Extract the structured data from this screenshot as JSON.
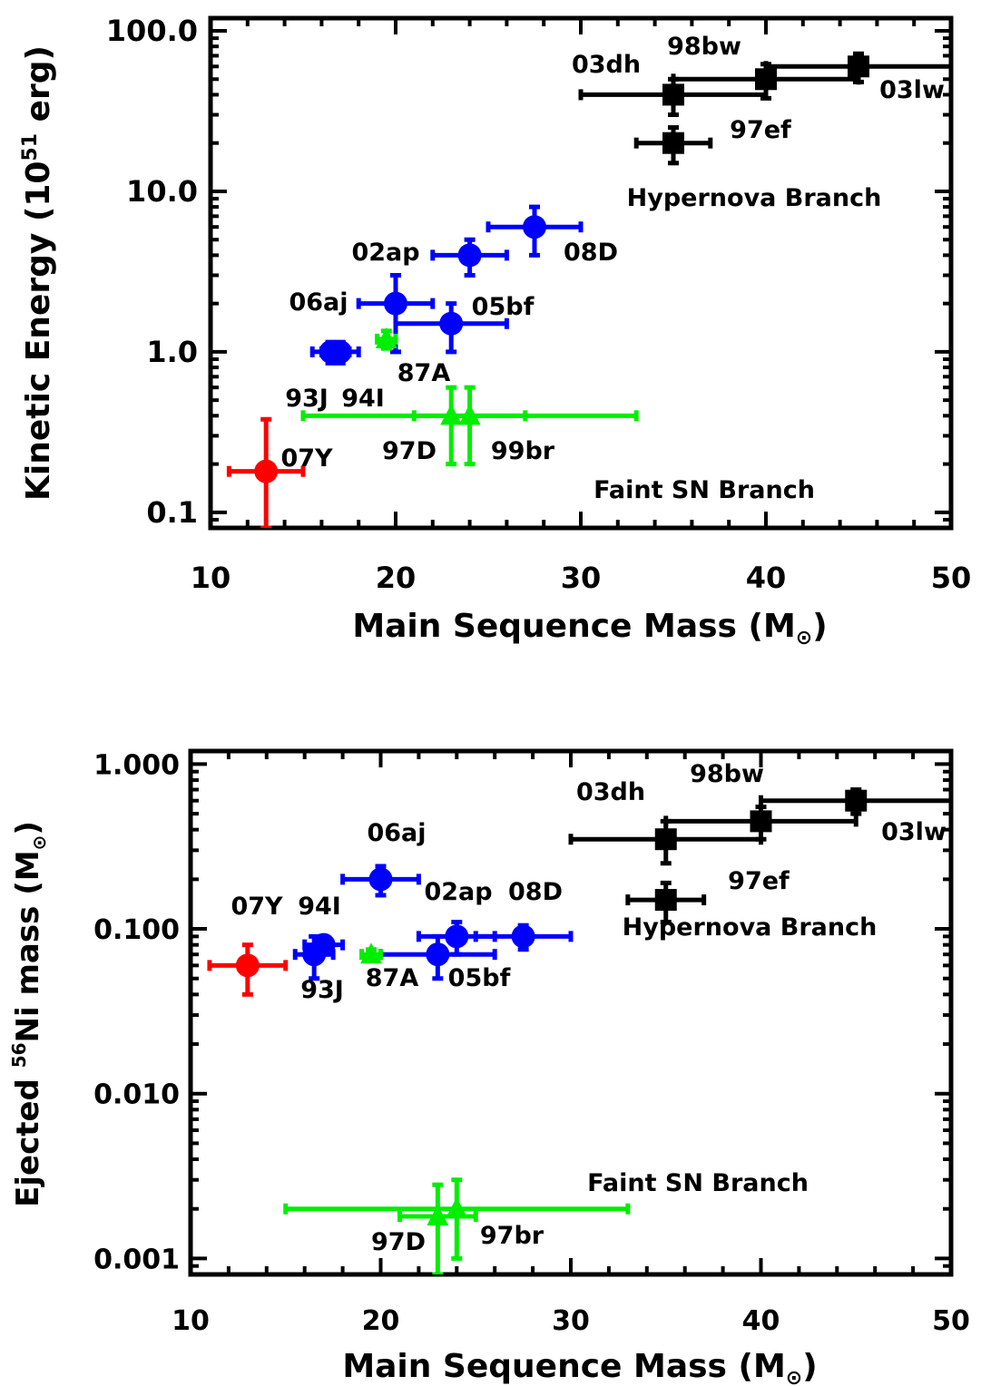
{
  "chart_data": [
    {
      "type": "scatter",
      "title": "",
      "xlabel_main": "Main Sequence Mass (M",
      "xlabel_sub": "⊙",
      "xlabel_close": ")",
      "ylabel_main": "Kinetic Energy (10",
      "ylabel_sup": "51",
      "ylabel_close": " erg)",
      "xlim": [
        10,
        50
      ],
      "ylim": [
        0.08,
        120
      ],
      "yscale": "log",
      "xticks": [
        "10",
        "20",
        "30",
        "40",
        "50"
      ],
      "xtick_values": [
        10,
        20,
        30,
        40,
        50
      ],
      "yticks": [
        "0.1",
        "1.0",
        "10.0",
        "100.0"
      ],
      "ytick_values": [
        0.1,
        1,
        10,
        100
      ],
      "annotations": [
        "Hypernova Branch",
        "Faint SN Branch"
      ],
      "colors": {
        "hypernova": "#000000",
        "normal": "#0000ff",
        "faint": "#00ee00",
        "sn2007Y": "#ff0000"
      },
      "points": [
        {
          "label": "03dh",
          "x": 35,
          "y": 40,
          "xerr": [
            5,
            5
          ],
          "yerr": [
            10,
            10
          ],
          "marker": "square",
          "color": "#000000"
        },
        {
          "label": "98bw",
          "x": 40,
          "y": 50,
          "xerr": [
            5,
            5
          ],
          "yerr": [
            12,
            12
          ],
          "marker": "square",
          "color": "#000000"
        },
        {
          "label": "03lw",
          "x": 45,
          "y": 60,
          "xerr": [
            5,
            5
          ],
          "yerr": [
            12,
            12
          ],
          "marker": "square",
          "color": "#000000"
        },
        {
          "label": "97ef",
          "x": 35,
          "y": 20,
          "xerr": [
            2,
            2
          ],
          "yerr": [
            5,
            5
          ],
          "marker": "square",
          "color": "#000000"
        },
        {
          "label": "08D",
          "x": 27.5,
          "y": 6,
          "xerr": [
            2.5,
            2.5
          ],
          "yerr": [
            2,
            2
          ],
          "marker": "circle",
          "color": "#0000ff"
        },
        {
          "label": "02ap",
          "x": 24,
          "y": 4,
          "xerr": [
            2,
            2
          ],
          "yerr": [
            1,
            1
          ],
          "marker": "circle",
          "color": "#0000ff"
        },
        {
          "label": "06aj",
          "x": 20,
          "y": 2,
          "xerr": [
            2,
            2
          ],
          "yerr": [
            1,
            1
          ],
          "marker": "circle",
          "color": "#0000ff"
        },
        {
          "label": "05bf",
          "x": 23,
          "y": 1.5,
          "xerr": [
            3,
            3
          ],
          "yerr": [
            0.5,
            0.5
          ],
          "marker": "circle",
          "color": "#0000ff"
        },
        {
          "label": "93J",
          "x": 16.5,
          "y": 1.0,
          "xerr": [
            1,
            1
          ],
          "yerr": [
            0.15,
            0.15
          ],
          "marker": "circle",
          "color": "#0000ff"
        },
        {
          "label": "94I",
          "x": 17,
          "y": 1.0,
          "xerr": [
            1,
            1
          ],
          "yerr": [
            0.15,
            0.15
          ],
          "marker": "circle",
          "color": "#0000ff"
        },
        {
          "label": "87A",
          "x": 19.5,
          "y": 1.2,
          "xerr": [
            0.5,
            0.5
          ],
          "yerr": [
            0.15,
            0.15
          ],
          "marker": "triangle",
          "color": "#00ee00"
        },
        {
          "label": "97D",
          "x": 23,
          "y": 0.4,
          "xerr": [
            8,
            10
          ],
          "yerr": [
            0.2,
            0.2
          ],
          "marker": "triangle",
          "color": "#00ee00"
        },
        {
          "label": "99br",
          "x": 24,
          "y": 0.4,
          "xerr": [
            3,
            3
          ],
          "yerr": [
            0.2,
            0.2
          ],
          "marker": "triangle",
          "color": "#00ee00"
        },
        {
          "label": "07Y",
          "x": 13,
          "y": 0.18,
          "xerr": [
            2,
            2
          ],
          "yerr": [
            0.1,
            0.2
          ],
          "marker": "circle",
          "color": "#ff0000"
        }
      ]
    },
    {
      "type": "scatter",
      "title": "",
      "xlabel_main": "Main Sequence Mass (M",
      "xlabel_sub": "⊙",
      "xlabel_close": ")",
      "ylabel_pre": "Ejected ",
      "ylabel_sup": "56",
      "ylabel_main": "Ni mass (M",
      "ylabel_sub": "⊙",
      "ylabel_close": ")",
      "xlim": [
        10,
        50
      ],
      "ylim": [
        0.0008,
        1.2
      ],
      "yscale": "log",
      "xticks": [
        "10",
        "20",
        "30",
        "40",
        "50"
      ],
      "xtick_values": [
        10,
        20,
        30,
        40,
        50
      ],
      "yticks": [
        "0.001",
        "0.010",
        "0.100",
        "1.000"
      ],
      "ytick_values": [
        0.001,
        0.01,
        0.1,
        1
      ],
      "annotations": [
        "Hypernova Branch",
        "Faint SN Branch"
      ],
      "colors": {
        "hypernova": "#000000",
        "normal": "#0000ff",
        "faint": "#00ee00",
        "sn2007Y": "#ff0000"
      },
      "points": [
        {
          "label": "03dh",
          "x": 35,
          "y": 0.35,
          "xerr": [
            5,
            5
          ],
          "yerr": [
            0.1,
            0.1
          ],
          "marker": "square",
          "color": "#000000"
        },
        {
          "label": "98bw",
          "x": 40,
          "y": 0.45,
          "xerr": [
            5,
            5
          ],
          "yerr": [
            0.1,
            0.1
          ],
          "marker": "square",
          "color": "#000000"
        },
        {
          "label": "03lw",
          "x": 45,
          "y": 0.6,
          "xerr": [
            5,
            5
          ],
          "yerr": [
            0.1,
            0.1
          ],
          "marker": "square",
          "color": "#000000"
        },
        {
          "label": "97ef",
          "x": 35,
          "y": 0.15,
          "xerr": [
            2,
            2
          ],
          "yerr": [
            0.04,
            0.04
          ],
          "marker": "square",
          "color": "#000000"
        },
        {
          "label": "06aj",
          "x": 20,
          "y": 0.2,
          "xerr": [
            2,
            2
          ],
          "yerr": [
            0.04,
            0.04
          ],
          "marker": "circle",
          "color": "#0000ff"
        },
        {
          "label": "02ap",
          "x": 24,
          "y": 0.09,
          "xerr": [
            2,
            2
          ],
          "yerr": [
            0.02,
            0.02
          ],
          "marker": "circle",
          "color": "#0000ff"
        },
        {
          "label": "08D",
          "x": 27.5,
          "y": 0.09,
          "xerr": [
            2.5,
            2.5
          ],
          "yerr": [
            0.015,
            0.015
          ],
          "marker": "circle",
          "color": "#0000ff"
        },
        {
          "label": "05bf",
          "x": 23,
          "y": 0.07,
          "xerr": [
            3,
            3
          ],
          "yerr": [
            0.02,
            0.02
          ],
          "marker": "circle",
          "color": "#0000ff"
        },
        {
          "label": "93J",
          "x": 16.5,
          "y": 0.07,
          "xerr": [
            1,
            1
          ],
          "yerr": [
            0.02,
            0.02
          ],
          "marker": "circle",
          "color": "#0000ff"
        },
        {
          "label": "94I",
          "x": 17,
          "y": 0.08,
          "xerr": [
            1,
            1
          ],
          "yerr": [
            0.01,
            0.01
          ],
          "marker": "circle",
          "color": "#0000ff"
        },
        {
          "label": "87A",
          "x": 19.5,
          "y": 0.07,
          "xerr": [
            0.5,
            0.5
          ],
          "yerr": [
            0.005,
            0.005
          ],
          "marker": "triangle",
          "color": "#00ee00"
        },
        {
          "label": "07Y",
          "x": 13,
          "y": 0.06,
          "xerr": [
            2,
            2
          ],
          "yerr": [
            0.02,
            0.02
          ],
          "marker": "circle",
          "color": "#ff0000"
        },
        {
          "label": "97D",
          "x": 23,
          "y": 0.0018,
          "xerr": [
            2,
            2
          ],
          "yerr": [
            0.001,
            0.001
          ],
          "marker": "triangle",
          "color": "#00ee00"
        },
        {
          "label": "97br",
          "x": 24,
          "y": 0.002,
          "xerr": [
            9,
            9
          ],
          "yerr": [
            0.001,
            0.001
          ],
          "marker": "triangle",
          "color": "#00ee00"
        }
      ]
    }
  ]
}
